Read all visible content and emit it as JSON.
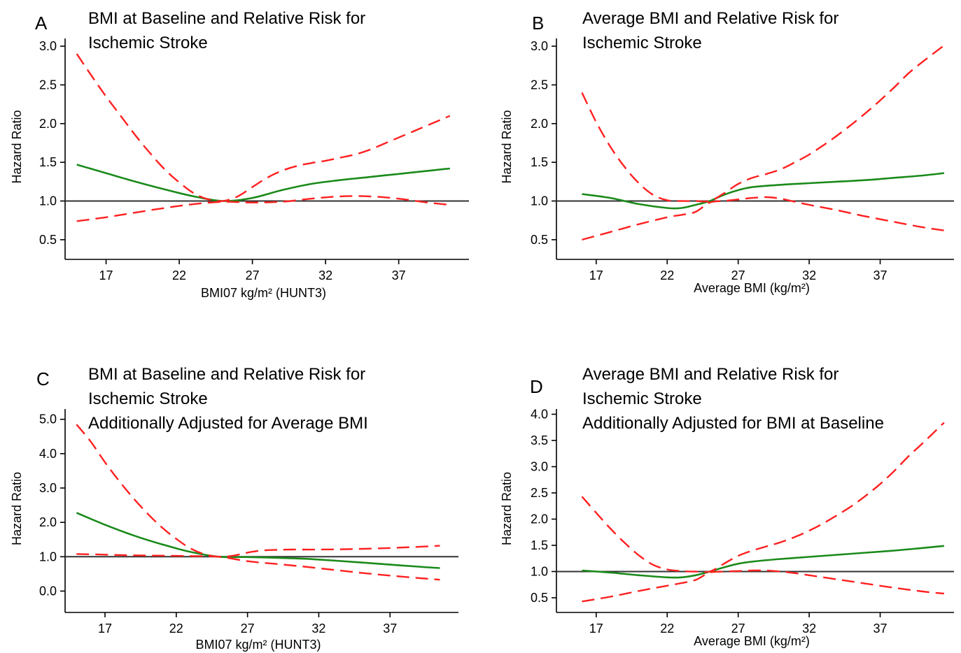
{
  "colors": {
    "estimate": "#1a8a1a",
    "ci": "#ff2020",
    "reference": "#333333"
  },
  "chart_data": [
    {
      "type": "line",
      "letter": "A",
      "title": [
        "BMI at Baseline and Relative Risk for",
        "Ischemic Stroke"
      ],
      "xlabel": "BMI07 kg/m² (HUNT3)",
      "ylabel": "Hazard Ratio",
      "xlim": [
        14.2,
        41.8
      ],
      "ylim": [
        0.3,
        3.1
      ],
      "xticks": [
        17,
        22,
        27,
        32,
        37
      ],
      "yticks": [
        0.5,
        1.0,
        1.5,
        2.0,
        2.5,
        3.0
      ],
      "ytick_labels": [
        "0.5",
        "1.0",
        "1.5",
        "2.0",
        "2.5",
        "3.0"
      ],
      "reference": 1.0,
      "series": [
        {
          "role": "estimate",
          "x": [
            15,
            17,
            19,
            21,
            23,
            25,
            27,
            29,
            31,
            33,
            35,
            37,
            39,
            40.5
          ],
          "y": [
            1.47,
            1.36,
            1.25,
            1.15,
            1.06,
            1.0,
            1.04,
            1.14,
            1.22,
            1.27,
            1.31,
            1.35,
            1.39,
            1.42
          ]
        },
        {
          "role": "upper",
          "x": [
            15,
            16,
            17,
            18,
            19,
            20,
            21,
            22,
            23,
            24,
            25,
            26,
            27,
            28,
            29,
            30,
            31,
            32,
            33,
            34,
            35,
            36,
            37,
            38,
            39,
            40.5
          ],
          "y": [
            2.9,
            2.62,
            2.35,
            2.1,
            1.85,
            1.62,
            1.41,
            1.24,
            1.1,
            1.02,
            1.0,
            1.06,
            1.18,
            1.3,
            1.39,
            1.45,
            1.49,
            1.52,
            1.56,
            1.6,
            1.66,
            1.74,
            1.82,
            1.9,
            1.98,
            2.1
          ]
        },
        {
          "role": "lower",
          "x": [
            15,
            17,
            19,
            21,
            23,
            25,
            27,
            29,
            31,
            33,
            35,
            37,
            39,
            40.5
          ],
          "y": [
            0.74,
            0.79,
            0.85,
            0.91,
            0.96,
            0.99,
            0.98,
            0.99,
            1.03,
            1.06,
            1.06,
            1.03,
            0.98,
            0.95
          ]
        }
      ]
    },
    {
      "type": "line",
      "letter": "B",
      "title": [
        "Average BMI and Relative Risk for",
        "Ischemic Stroke"
      ],
      "xlabel": "Average BMI (kg/m²)",
      "ylabel": "Hazard Ratio",
      "xlim": [
        14.2,
        42.2
      ],
      "ylim": [
        0.3,
        3.1
      ],
      "xticks": [
        17,
        22,
        27,
        32,
        37
      ],
      "yticks": [
        0.5,
        1.0,
        1.5,
        2.0,
        2.5,
        3.0
      ],
      "ytick_labels": [
        "0.5",
        "1.0",
        "1.5",
        "2.0",
        "2.5",
        "3.0"
      ],
      "reference": 1.0,
      "series": [
        {
          "role": "estimate",
          "x": [
            16,
            18,
            20,
            22,
            23,
            24,
            25,
            26,
            27,
            28,
            30,
            32,
            34,
            36,
            38,
            40,
            41.5
          ],
          "y": [
            1.09,
            1.04,
            0.96,
            0.91,
            0.91,
            0.95,
            1.0,
            1.08,
            1.14,
            1.18,
            1.21,
            1.23,
            1.25,
            1.27,
            1.3,
            1.33,
            1.36
          ]
        },
        {
          "role": "upper",
          "x": [
            16,
            17,
            18,
            19,
            20,
            21,
            22,
            23,
            24,
            25,
            26,
            27,
            28,
            29,
            30,
            31,
            32,
            33,
            34,
            35,
            36,
            37,
            38,
            39,
            40,
            41.5
          ],
          "y": [
            2.4,
            2.02,
            1.7,
            1.44,
            1.23,
            1.08,
            1.01,
            1.0,
            1.0,
            1.0,
            1.1,
            1.22,
            1.3,
            1.35,
            1.41,
            1.5,
            1.6,
            1.72,
            1.85,
            1.99,
            2.14,
            2.3,
            2.47,
            2.65,
            2.8,
            3.01
          ]
        },
        {
          "role": "lower",
          "x": [
            16,
            18,
            20,
            22,
            23,
            24,
            25,
            26,
            27,
            28,
            29,
            30,
            31,
            32,
            34,
            36,
            38,
            40,
            41.5
          ],
          "y": [
            0.5,
            0.6,
            0.7,
            0.79,
            0.82,
            0.86,
            0.98,
            1.0,
            1.02,
            1.04,
            1.05,
            1.03,
            0.99,
            0.95,
            0.88,
            0.8,
            0.73,
            0.66,
            0.62
          ]
        }
      ]
    },
    {
      "type": "line",
      "letter": "C",
      "title": [
        "BMI at Baseline and Relative Risk for",
        "Ischemic Stroke",
        "Additionally Adjusted for Average BMI"
      ],
      "xlabel": "BMI07 kg/m² (HUNT3)",
      "ylabel": "Hazard Ratio",
      "xlim": [
        14.2,
        41.8
      ],
      "ylim": [
        -0.5,
        5.3
      ],
      "xticks": [
        17,
        22,
        27,
        32,
        37
      ],
      "yticks": [
        0,
        1,
        2,
        3,
        4,
        5
      ],
      "ytick_labels": [
        "0.0",
        "1.0",
        "2.0",
        "3.0",
        "4.0",
        "5.0"
      ],
      "reference": 1.0,
      "series": [
        {
          "role": "estimate",
          "x": [
            15,
            17,
            19,
            21,
            23,
            25,
            27,
            29,
            31,
            33,
            35,
            37,
            39,
            40.5
          ],
          "y": [
            2.28,
            1.93,
            1.62,
            1.36,
            1.14,
            1.0,
            0.99,
            0.97,
            0.94,
            0.89,
            0.83,
            0.77,
            0.71,
            0.67
          ]
        },
        {
          "role": "upper",
          "x": [
            15,
            16,
            17,
            18,
            19,
            20,
            21,
            22,
            23,
            24,
            25,
            26,
            27,
            28,
            29,
            30,
            32,
            34,
            36,
            38,
            40.5
          ],
          "y": [
            4.85,
            4.35,
            3.75,
            3.2,
            2.7,
            2.25,
            1.85,
            1.52,
            1.24,
            1.07,
            1.0,
            1.03,
            1.12,
            1.18,
            1.2,
            1.21,
            1.21,
            1.22,
            1.24,
            1.27,
            1.32
          ]
        },
        {
          "role": "lower",
          "x": [
            15,
            17,
            19,
            21,
            23,
            25,
            27,
            29,
            31,
            33,
            35,
            37,
            39,
            40.5
          ],
          "y": [
            1.08,
            1.06,
            1.04,
            1.03,
            1.02,
            1.0,
            0.87,
            0.79,
            0.71,
            0.62,
            0.53,
            0.45,
            0.38,
            0.33
          ]
        }
      ]
    },
    {
      "type": "line",
      "letter": "D",
      "title": [
        "Average BMI and Relative Risk for",
        "Ischemic Stroke",
        "Additionally Adjusted for BMI at Baseline"
      ],
      "xlabel": "Average BMI (kg/m²)",
      "ylabel": "Hazard Ratio",
      "xlim": [
        14.2,
        42.2
      ],
      "ylim": [
        0.3,
        4.1
      ],
      "xticks": [
        17,
        22,
        27,
        32,
        37
      ],
      "yticks": [
        0.5,
        1.0,
        1.5,
        2.0,
        2.5,
        3.0,
        3.5,
        4.0
      ],
      "ytick_labels": [
        "0.5",
        "1.0",
        "1.5",
        "2.0",
        "2.5",
        "3.0",
        "3.5",
        "4.0"
      ],
      "reference": 1.0,
      "series": [
        {
          "role": "estimate",
          "x": [
            16,
            18,
            20,
            22,
            23,
            24,
            25,
            26,
            27,
            28,
            30,
            32,
            34,
            36,
            38,
            40,
            41.5
          ],
          "y": [
            1.02,
            0.98,
            0.93,
            0.89,
            0.89,
            0.93,
            1.0,
            1.08,
            1.15,
            1.19,
            1.24,
            1.28,
            1.32,
            1.36,
            1.4,
            1.45,
            1.49
          ]
        },
        {
          "role": "upper",
          "x": [
            16,
            17,
            18,
            19,
            20,
            21,
            22,
            23,
            24,
            25,
            26,
            27,
            28,
            29,
            30,
            31,
            32,
            33,
            34,
            35,
            36,
            37,
            38,
            39,
            40,
            41.5
          ],
          "y": [
            2.43,
            2.12,
            1.82,
            1.55,
            1.31,
            1.13,
            1.04,
            1.01,
            1.0,
            1.0,
            1.15,
            1.3,
            1.4,
            1.48,
            1.56,
            1.66,
            1.78,
            1.92,
            2.08,
            2.25,
            2.45,
            2.67,
            2.92,
            3.2,
            3.45,
            3.84
          ]
        },
        {
          "role": "lower",
          "x": [
            16,
            18,
            20,
            22,
            23,
            24,
            25,
            26,
            27,
            28,
            29,
            30,
            31,
            32,
            34,
            36,
            38,
            40,
            41.5
          ],
          "y": [
            0.43,
            0.52,
            0.63,
            0.73,
            0.78,
            0.84,
            0.98,
            1.0,
            1.01,
            1.02,
            1.02,
            1.0,
            0.97,
            0.93,
            0.85,
            0.77,
            0.69,
            0.62,
            0.58
          ]
        }
      ]
    }
  ]
}
